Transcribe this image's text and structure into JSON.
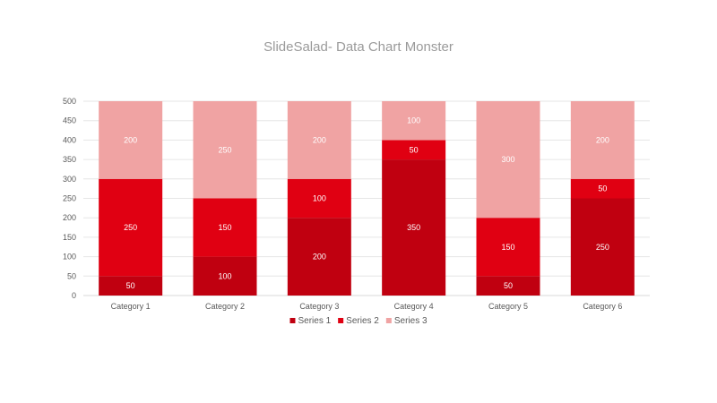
{
  "chart_data": {
    "type": "bar",
    "stacked": true,
    "title": "SlideSalad- Data Chart Monster",
    "categories": [
      "Category 1",
      "Category 2",
      "Category 3",
      "Category 4",
      "Category 5",
      "Category 6"
    ],
    "series": [
      {
        "name": "Series 1",
        "color": "#c00010",
        "values": [
          50,
          100,
          200,
          350,
          50,
          250
        ]
      },
      {
        "name": "Series 2",
        "color": "#e00012",
        "values": [
          250,
          150,
          100,
          50,
          150,
          50
        ]
      },
      {
        "name": "Series 3",
        "color": "#f0a3a3",
        "values": [
          200,
          250,
          200,
          100,
          300,
          200
        ]
      }
    ],
    "ylim": [
      0,
      500
    ],
    "yticks": [
      0,
      50,
      100,
      150,
      200,
      250,
      300,
      350,
      400,
      450,
      500
    ],
    "grid": true,
    "legend": "bottom",
    "data_labels": true
  }
}
